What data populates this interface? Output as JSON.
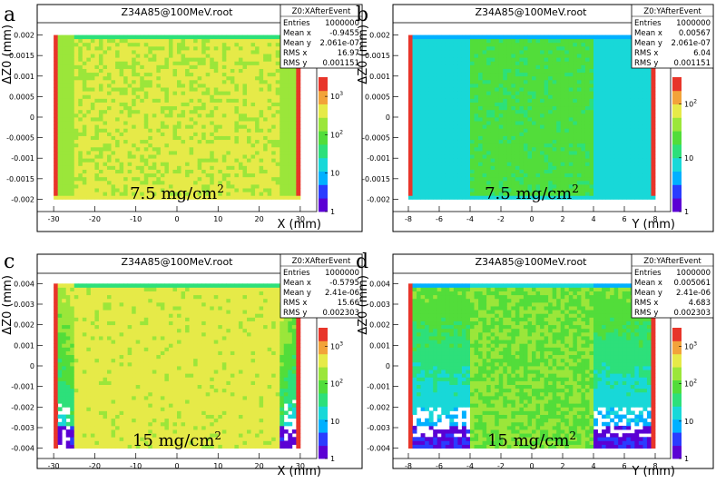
{
  "chart_data": [
    {
      "type": "heatmap",
      "panel": "a",
      "title": "Z34A85@100MeV.root",
      "xlabel": "X (mm)",
      "ylabel": "ΔZ0 (mm)",
      "xlim": [
        -34,
        34
      ],
      "ylim": [
        -0.0023,
        0.0023
      ],
      "xticks": [
        -30,
        -20,
        -10,
        0,
        10,
        20,
        30
      ],
      "yticks": [
        -0.002,
        -0.0015,
        -0.001,
        -0.0005,
        0,
        0.0005,
        0.001,
        0.0015,
        0.002
      ],
      "ytick_labels": [
        "-0.002",
        "-0.0015",
        "-0.001",
        "-0.0005",
        "0",
        "0.0005",
        "0.001",
        "0.0015",
        "0.002"
      ],
      "data_extent": {
        "x": [
          -30,
          30
        ],
        "y": [
          -0.002,
          0.002
        ]
      },
      "uniform_halfwidth": 25,
      "annotation": {
        "text": "7.5 mg/cm",
        "sup": "2"
      },
      "stats": {
        "name": "Z0:XAfterEvent",
        "rows": [
          [
            "Entries",
            "1000000"
          ],
          [
            "Mean x",
            "-0.9455"
          ],
          [
            "Mean y",
            "2.061e-07"
          ],
          [
            "RMS x",
            "16.97"
          ],
          [
            "RMS y",
            "0.001151"
          ]
        ]
      },
      "zscale": {
        "labels": [
          "1",
          "10",
          "10",
          "10"
        ],
        "sups": [
          "",
          "",
          "2",
          "3"
        ]
      }
    },
    {
      "type": "heatmap",
      "panel": "b",
      "title": "Z34A85@100MeV.root",
      "xlabel": "Y (mm)",
      "ylabel": "ΔZ0 (mm)",
      "xlim": [
        -9,
        9
      ],
      "ylim": [
        -0.0023,
        0.0023
      ],
      "xticks": [
        -8,
        -6,
        -4,
        -2,
        0,
        2,
        4,
        6,
        8
      ],
      "yticks": [
        -0.002,
        -0.0015,
        -0.001,
        -0.0005,
        0,
        0.0005,
        0.001,
        0.0015,
        0.002
      ],
      "ytick_labels": [
        "-0.002",
        "-0.0015",
        "-0.001",
        "-0.0005",
        "0",
        "0.0005",
        "0.001",
        "0.0015",
        "0.002"
      ],
      "data_extent": {
        "x": [
          -8,
          8
        ],
        "y": [
          -0.002,
          0.002
        ]
      },
      "uniform_halfwidth": 4,
      "annotation": {
        "text": "7.5 mg/cm",
        "sup": "2"
      },
      "stats": {
        "name": "Z0:YAfterEvent",
        "rows": [
          [
            "Entries",
            "1000000"
          ],
          [
            "Mean x",
            "0.00567"
          ],
          [
            "Mean y",
            "2.061e-07"
          ],
          [
            "RMS x",
            "6.04"
          ],
          [
            "RMS y",
            "0.001151"
          ]
        ]
      },
      "zscale": {
        "labels": [
          "1",
          "10",
          "10"
        ],
        "sups": [
          "",
          "",
          "2"
        ]
      }
    },
    {
      "type": "heatmap",
      "panel": "c",
      "title": "Z34A85@100MeV.root",
      "xlabel": "X (mm)",
      "ylabel": "ΔZ0 (mm)",
      "xlim": [
        -34,
        34
      ],
      "ylim": [
        -0.0045,
        0.0045
      ],
      "xticks": [
        -30,
        -20,
        -10,
        0,
        10,
        20,
        30
      ],
      "yticks": [
        -0.004,
        -0.003,
        -0.002,
        -0.001,
        0,
        0.001,
        0.002,
        0.003,
        0.004
      ],
      "ytick_labels": [
        "-0.004",
        "-0.003",
        "-0.002",
        "-0.001",
        "0",
        "0.001",
        "0.002",
        "0.003",
        "0.004"
      ],
      "data_extent": {
        "x": [
          -30,
          30
        ],
        "y": [
          -0.004,
          0.004
        ]
      },
      "uniform_halfwidth": 25,
      "annotation": {
        "text": "15 mg/cm",
        "sup": "2"
      },
      "stats": {
        "name": "Z0:XAfterEvent",
        "rows": [
          [
            "Entries",
            "1000000"
          ],
          [
            "Mean x",
            "-0.5795"
          ],
          [
            "Mean y",
            "2.41e-06"
          ],
          [
            "RMS x",
            "15.66"
          ],
          [
            "RMS y",
            "0.002303"
          ]
        ]
      },
      "zscale": {
        "labels": [
          "1",
          "10",
          "10",
          "10"
        ],
        "sups": [
          "",
          "",
          "2",
          "3"
        ]
      }
    },
    {
      "type": "heatmap",
      "panel": "d",
      "title": "Z34A85@100MeV.root",
      "xlabel": "Y (mm)",
      "ylabel": "ΔZ0 (mm)",
      "xlim": [
        -9,
        9
      ],
      "ylim": [
        -0.0045,
        0.0045
      ],
      "xticks": [
        -8,
        -6,
        -4,
        -2,
        0,
        2,
        4,
        6,
        8
      ],
      "yticks": [
        -0.004,
        -0.003,
        -0.002,
        -0.001,
        0,
        0.001,
        0.002,
        0.003,
        0.004
      ],
      "ytick_labels": [
        "-0.004",
        "-0.003",
        "-0.002",
        "-0.001",
        "0",
        "0.001",
        "0.002",
        "0.003",
        "0.004"
      ],
      "data_extent": {
        "x": [
          -8,
          8
        ],
        "y": [
          -0.004,
          0.004
        ]
      },
      "uniform_halfwidth": 4,
      "annotation": {
        "text": "15 mg/cm",
        "sup": "2"
      },
      "stats": {
        "name": "Z0:YAfterEvent",
        "rows": [
          [
            "Entries",
            "1000000"
          ],
          [
            "Mean x",
            "0.005061"
          ],
          [
            "Mean y",
            "2.41e-06"
          ],
          [
            "RMS x",
            "4.683"
          ],
          [
            "RMS y",
            "0.002303"
          ]
        ]
      },
      "zscale": {
        "labels": [
          "1",
          "10",
          "10",
          "10"
        ],
        "sups": [
          "",
          "",
          "2",
          "3"
        ]
      }
    }
  ],
  "colors": {
    "frame": "#000000",
    "palette": [
      "#5b00d4",
      "#2a3cff",
      "#00b0ff",
      "#18d8d8",
      "#2de07a",
      "#52dd3a",
      "#9be63a",
      "#e6ea48",
      "#f2a33a",
      "#e8352a"
    ]
  }
}
